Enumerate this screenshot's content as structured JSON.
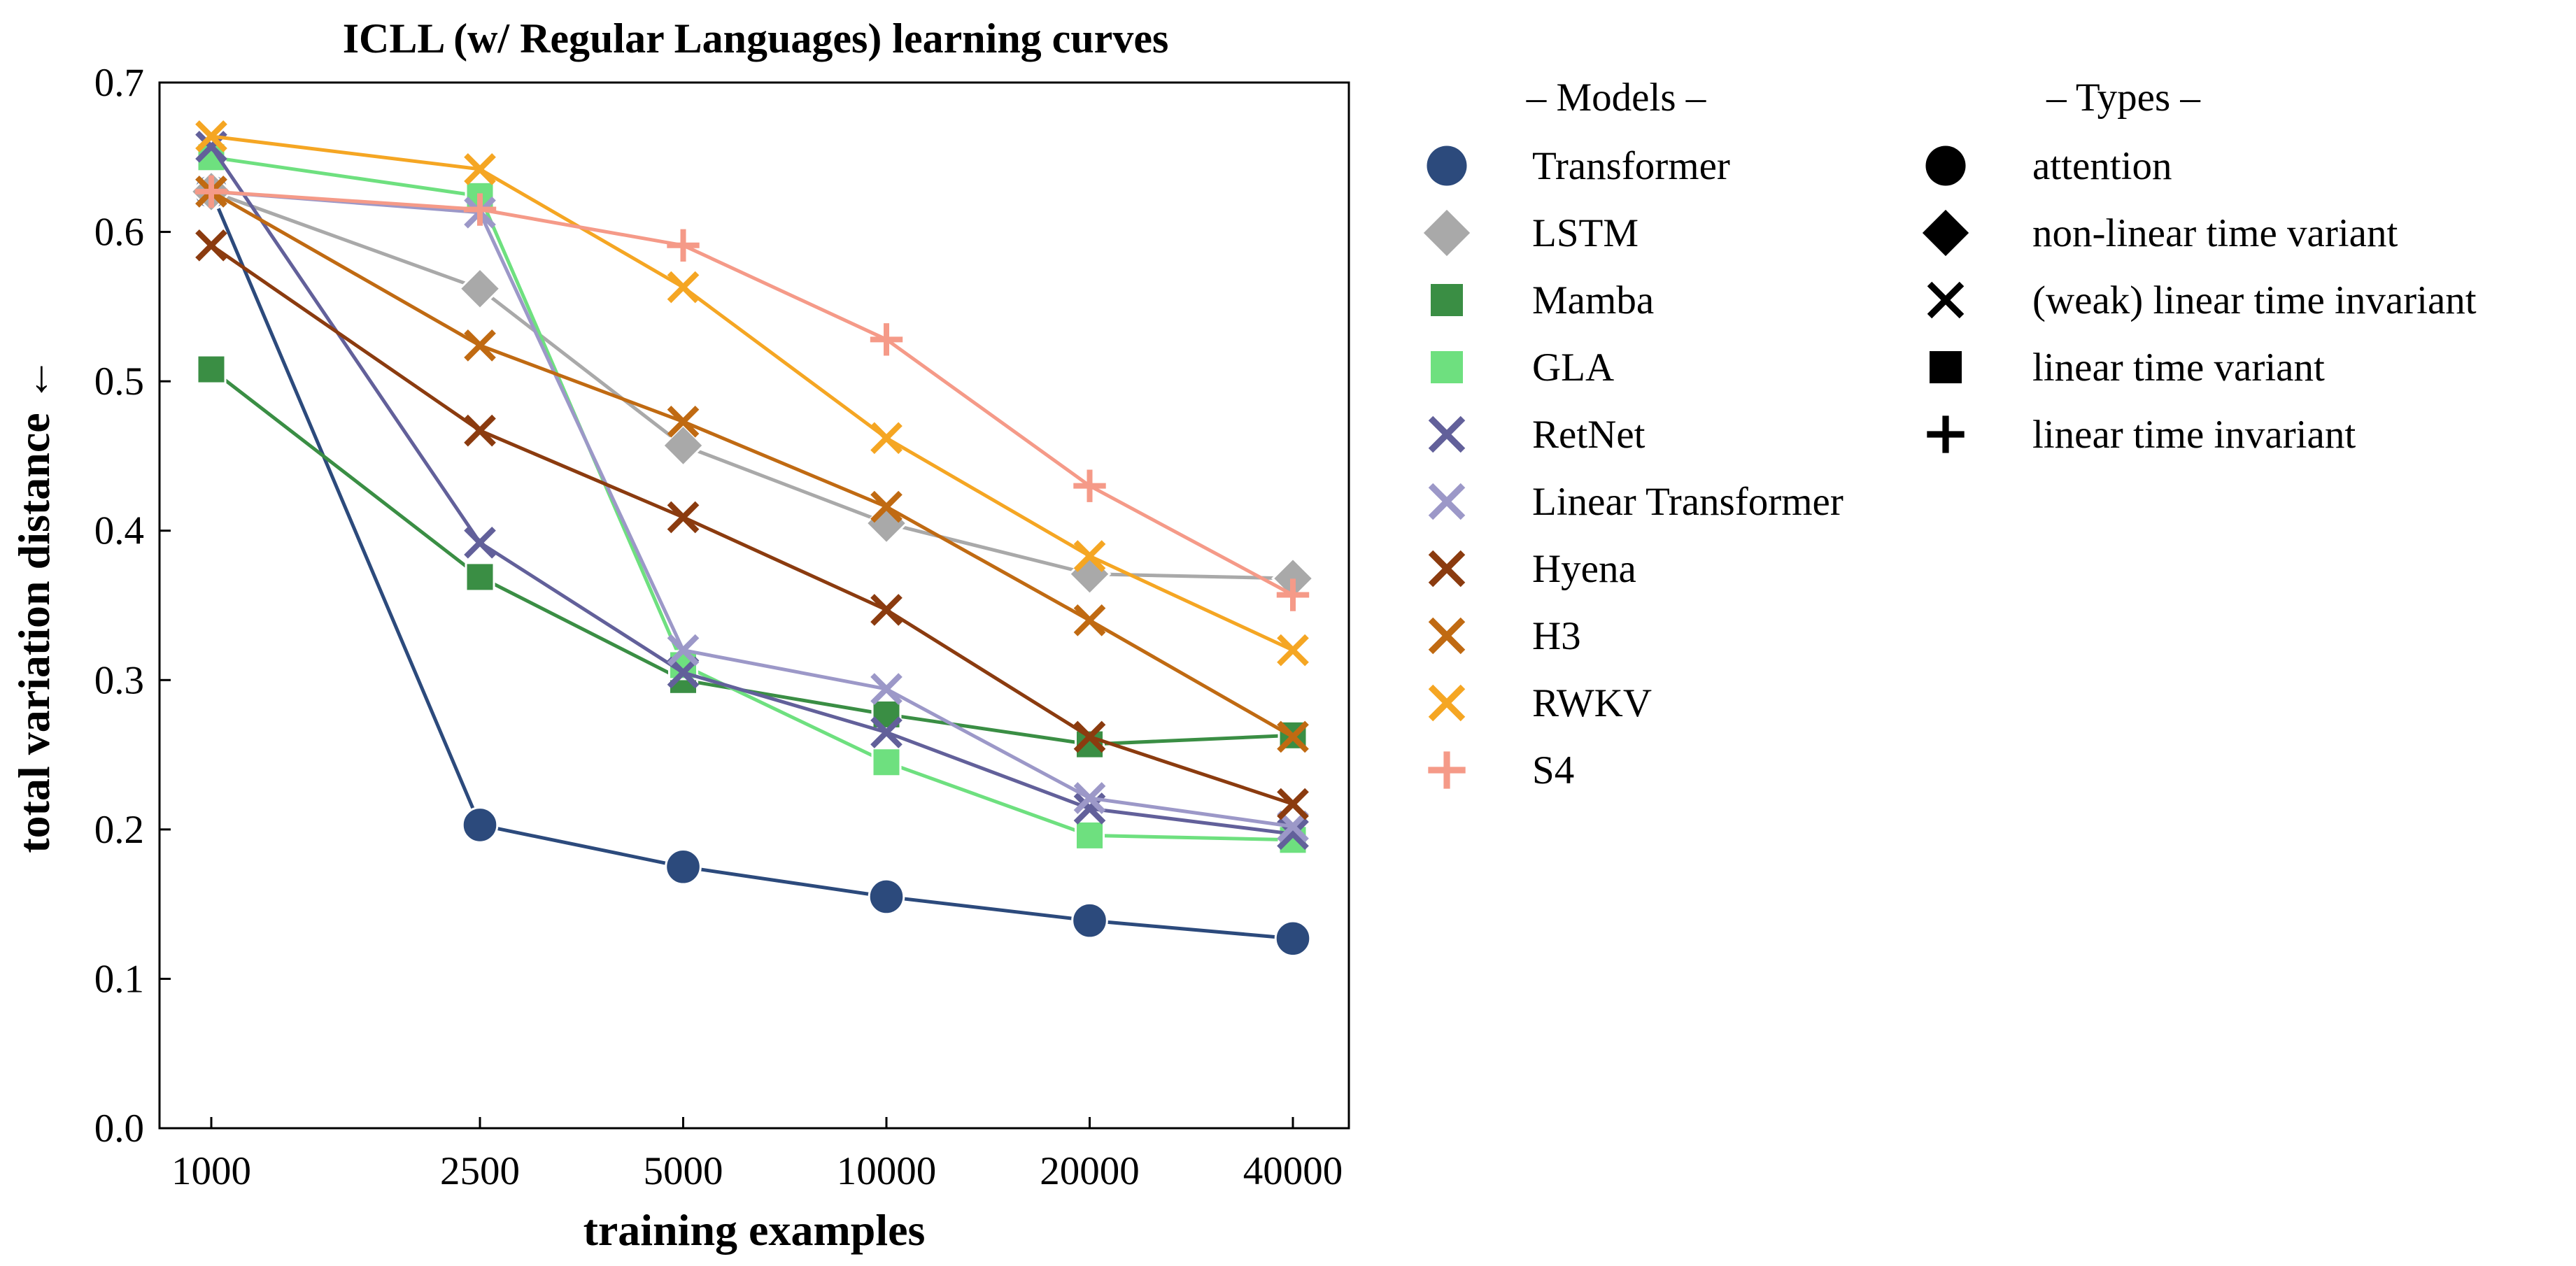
{
  "chart_data": {
    "type": "line",
    "title": "ICLL (w/ Regular Languages) learning curves",
    "xlabel": "training examples",
    "ylabel": "total variation distance ←",
    "categories": [
      "1000",
      "2500",
      "5000",
      "10000",
      "20000",
      "40000"
    ],
    "x_scale": "log2",
    "ylim": [
      0.0,
      0.7
    ],
    "yticks": [
      "0.0",
      "0.1",
      "0.2",
      "0.3",
      "0.4",
      "0.5",
      "0.6",
      "0.7"
    ],
    "grid": false,
    "series": [
      {
        "name": "Transformer",
        "color": "#2c4a7c",
        "marker": "circle",
        "values": [
          0.627,
          0.203,
          0.175,
          0.155,
          0.139,
          0.127
        ]
      },
      {
        "name": "LSTM",
        "color": "#a9a9a9",
        "marker": "diamond",
        "values": [
          0.627,
          0.562,
          0.457,
          0.405,
          0.371,
          0.368
        ]
      },
      {
        "name": "Mamba",
        "color": "#3a8e44",
        "marker": "square",
        "values": [
          0.508,
          0.369,
          0.3,
          0.277,
          0.257,
          0.263
        ]
      },
      {
        "name": "GLA",
        "color": "#6ee07f",
        "marker": "square",
        "values": [
          0.65,
          0.624,
          0.31,
          0.245,
          0.196,
          0.193
        ]
      },
      {
        "name": "RetNet",
        "color": "#62609a",
        "marker": "x",
        "values": [
          0.657,
          0.392,
          0.305,
          0.265,
          0.214,
          0.197
        ]
      },
      {
        "name": "Linear Transformer",
        "color": "#9c98c8",
        "marker": "x",
        "values": [
          0.627,
          0.613,
          0.32,
          0.294,
          0.221,
          0.202
        ]
      },
      {
        "name": "Hyena",
        "color": "#8b3b0f",
        "marker": "x",
        "values": [
          0.591,
          0.467,
          0.409,
          0.347,
          0.262,
          0.217
        ]
      },
      {
        "name": "H3",
        "color": "#c06a12",
        "marker": "x",
        "values": [
          0.627,
          0.524,
          0.473,
          0.416,
          0.34,
          0.262
        ]
      },
      {
        "name": "RWKV",
        "color": "#f5a623",
        "marker": "x",
        "values": [
          0.664,
          0.642,
          0.563,
          0.462,
          0.383,
          0.32
        ]
      },
      {
        "name": "S4",
        "color": "#f59a88",
        "marker": "plus",
        "values": [
          0.627,
          0.615,
          0.591,
          0.528,
          0.43,
          0.357
        ]
      }
    ],
    "legend_models_header": "– Models –",
    "legend_types_header": "– Types –",
    "types": [
      {
        "label": "attention",
        "marker": "circle"
      },
      {
        "label": "non-linear time variant",
        "marker": "diamond"
      },
      {
        "label": "(weak) linear time invariant",
        "marker": "x"
      },
      {
        "label": "linear time variant",
        "marker": "square"
      },
      {
        "label": "linear time invariant",
        "marker": "plus"
      }
    ]
  }
}
